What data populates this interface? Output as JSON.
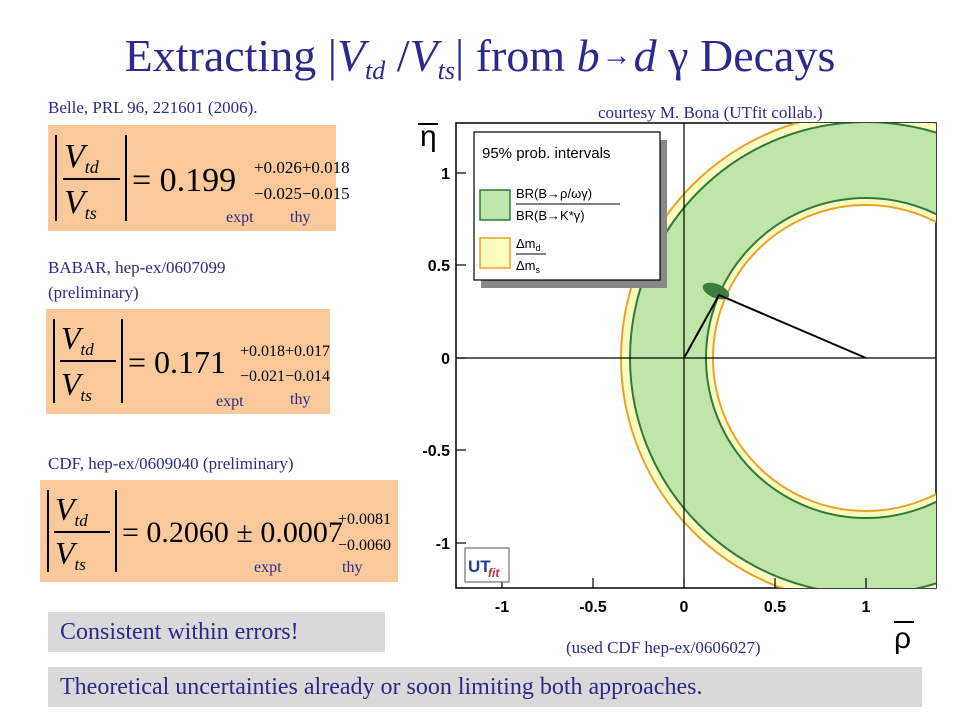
{
  "title": {
    "pre": "Extracting |",
    "v1": "V",
    "s1": "td",
    "mid": " /",
    "v2": "V",
    "s2": "ts",
    "post": "| from ",
    "b": "b",
    "arrow": "→",
    "d": "d",
    "gamma": " γ ",
    "tail": "Decays"
  },
  "belle": {
    "ref": "Belle, PRL 96, 221601 (2006).",
    "central": "= 0.199",
    "sup": "+0.026+0.018",
    "sub": "−0.025−0.015",
    "label_expt": "expt",
    "label_thy": "thy"
  },
  "babar": {
    "ref_line1": "BABAR, hep-ex/0607099",
    "ref_line2": "(preliminary)",
    "central": "= 0.171",
    "sup": "+0.018+0.017",
    "sub": "−0.021−0.014",
    "label_expt": "expt",
    "label_thy": "thy"
  },
  "cdf": {
    "ref": "CDF, hep-ex/0609040 (preliminary)",
    "central": "= 0.2060 ± 0.0007",
    "sup": "+0.0081",
    "sub": "−0.0060",
    "label_expt": "expt",
    "label_thy": "thy"
  },
  "vtd_num": "V",
  "vtd_num_sub": "td",
  "vts_den": "V",
  "vts_den_sub": "ts",
  "courtesy": "courtesy M. Bona (UTfit collab.)",
  "used_cdf": "(used CDF hep-ex/0606027)",
  "banner_consistent": "Consistent within errors!",
  "banner_theory": "Theoretical uncertainties already or soon limiting both approaches.",
  "plot": {
    "y_axis_label": "η",
    "x_axis_label": "ρ",
    "xticks": [
      "-1",
      "-0.5",
      "0",
      "0.5",
      "1"
    ],
    "yticks": [
      "1",
      "0.5",
      "0",
      "-0.5",
      "-1"
    ],
    "legend_title": "95% prob. intervals",
    "legend_br_num": "BR(B→ρ/ωγ)",
    "legend_br_den": "BR(B→K*γ)",
    "legend_dm_num": "Δm",
    "legend_dm_num_sub": "d",
    "legend_dm_den": "Δm",
    "legend_dm_den_sub": "s",
    "logo_ut": "UT",
    "logo_fit": "fit",
    "colors": {
      "br_band": "#bfe6a8",
      "dm_band": "#fdfcc0",
      "br_edge": "#2f7a3a",
      "dm_edge": "#e8a22a",
      "apex": "#3d7d3d"
    }
  }
}
